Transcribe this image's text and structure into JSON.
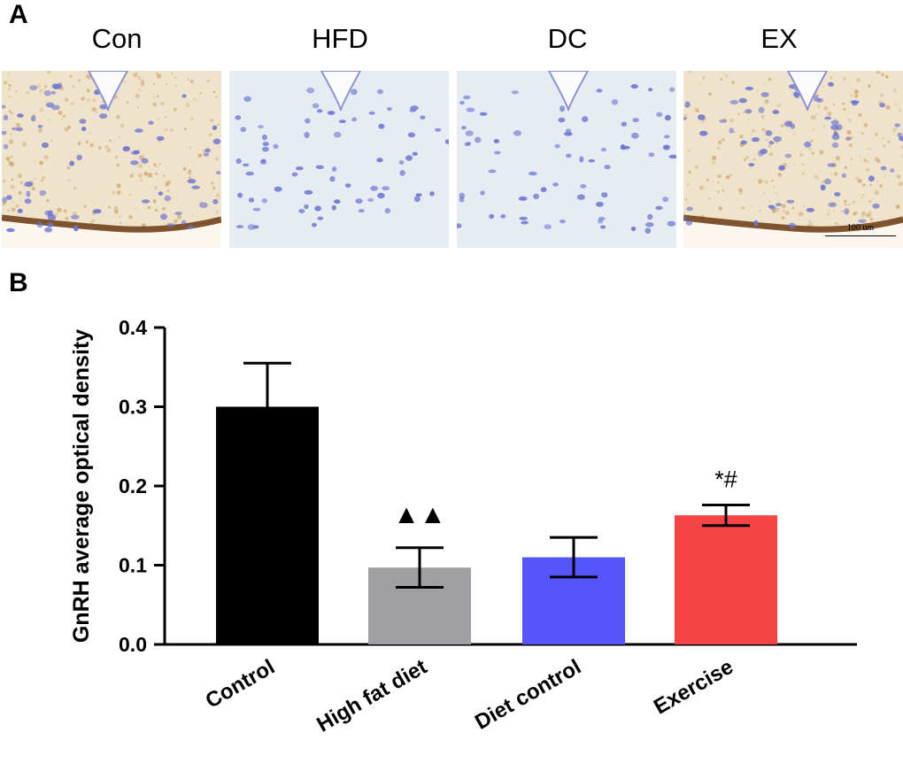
{
  "panel_a": {
    "letter": "A",
    "groups": [
      {
        "label": "Con",
        "stain": "brown"
      },
      {
        "label": "HFD",
        "stain": "none"
      },
      {
        "label": "DC",
        "stain": "none"
      },
      {
        "label": "EX",
        "stain": "brown"
      }
    ],
    "scale_bar_label": "100 um"
  },
  "panel_b": {
    "letter": "B"
  },
  "chart_data": {
    "type": "bar",
    "categories": [
      "Control",
      "High fat diet",
      "Diet control",
      "Exercise"
    ],
    "values": [
      0.3,
      0.097,
      0.11,
      0.163
    ],
    "errors": [
      0.055,
      0.025,
      0.025,
      0.013
    ],
    "colors": [
      "#000000",
      "#a0a0a4",
      "#5555fa",
      "#f64445"
    ],
    "annotations": [
      "",
      "▲▲",
      "",
      "*#"
    ],
    "ylabel": "GnRH average optical density",
    "xlabel": "",
    "ylim": [
      0,
      0.4
    ],
    "yticks": [
      "0.0",
      "0.1",
      "0.2",
      "0.3",
      "0.4"
    ]
  }
}
